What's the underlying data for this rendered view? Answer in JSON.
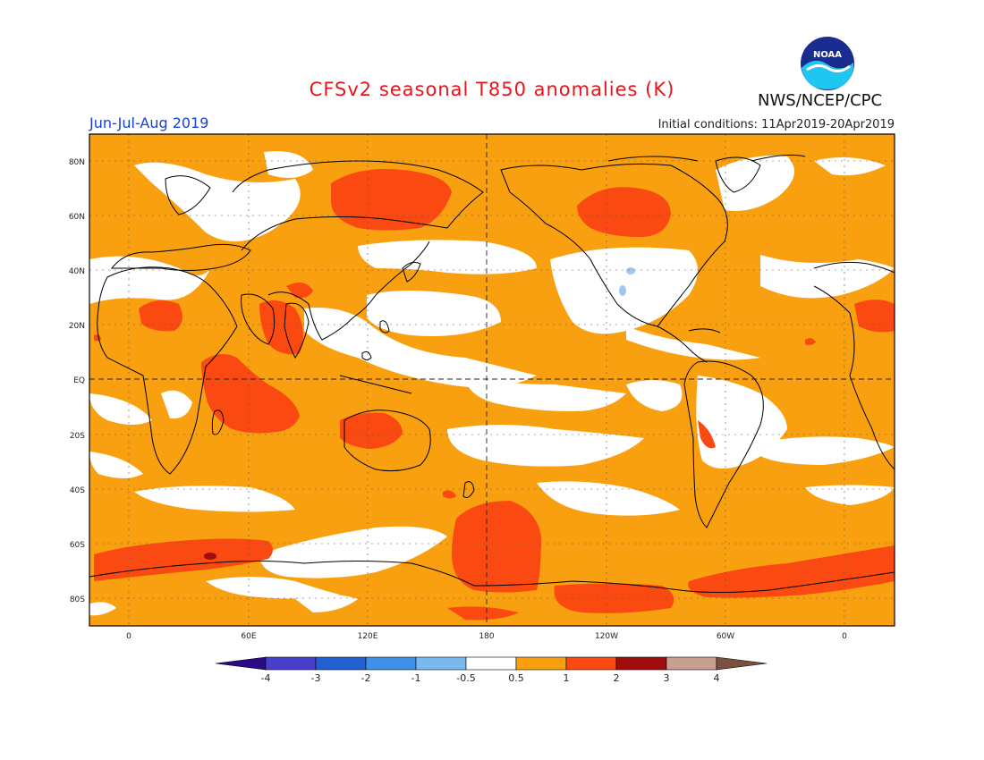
{
  "header": {
    "title": "CFSv2 seasonal T850 anomalies (K)",
    "period": "Jun-Jul-Aug 2019",
    "initial_conditions": "Initial conditions: 11Apr2019-20Apr2019",
    "agency": "NWS/NCEP/CPC",
    "logo_text": "NOAA"
  },
  "map": {
    "projection": "cylindrical equidistant",
    "lat_labels": [
      "80N",
      "60N",
      "40N",
      "20N",
      "EQ",
      "20S",
      "40S",
      "60S",
      "80S"
    ],
    "lon_labels": [
      "0",
      "60E",
      "120E",
      "180",
      "120W",
      "60W",
      "0"
    ],
    "colors": {
      "anomaly_0_5_to_1": "#f9a010",
      "anomaly_1_to_2": "#fa4a12",
      "anomaly_2_to_3": "#a00d0d",
      "near_zero": "#ffffff",
      "land_outline": "#000000",
      "negative_1_to_0_5": "#a0c8f0"
    }
  },
  "colorbar": {
    "labels": [
      "-4",
      "-3",
      "-2",
      "-1",
      "-0.5",
      "0.5",
      "1",
      "2",
      "3",
      "4"
    ],
    "colors": [
      "#2a0a88",
      "#4a3fcc",
      "#2060d0",
      "#4090e8",
      "#7ab8f0",
      "#ffffff",
      "#f9a010",
      "#fa4a12",
      "#a00d0d",
      "#c8a090",
      "#7a5040"
    ]
  }
}
